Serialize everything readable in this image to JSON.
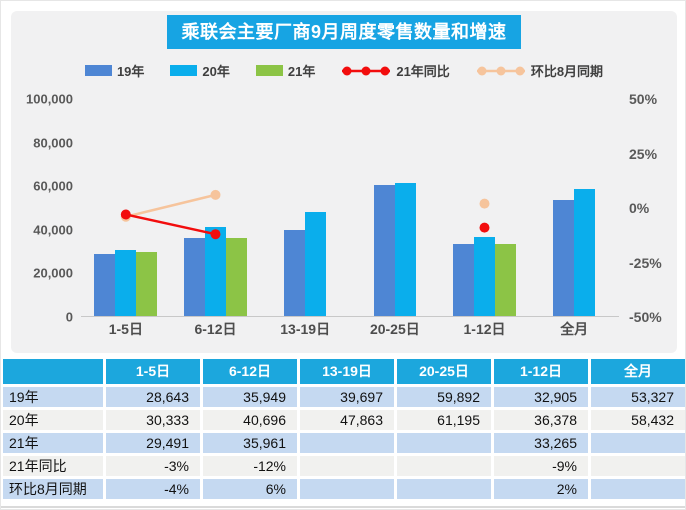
{
  "chart_data": {
    "type": "bar",
    "title": "乘联会主要厂商9月周度零售数量和增速",
    "categories": [
      "1-5日",
      "6-12日",
      "13-19日",
      "20-25日",
      "1-12日",
      "全月"
    ],
    "bar_series": [
      {
        "name": "19年",
        "color": "#4e86d4",
        "values": [
          28643,
          35949,
          39697,
          59892,
          32905,
          53327
        ]
      },
      {
        "name": "20年",
        "color": "#0aaeec",
        "values": [
          30333,
          40696,
          47863,
          61195,
          36378,
          58432
        ]
      },
      {
        "name": "21年",
        "color": "#8cc446",
        "values": [
          29491,
          35961,
          null,
          null,
          33265,
          null
        ]
      }
    ],
    "line_series": [
      {
        "name": "21年同比",
        "color": "#f20d0d",
        "values_pct": [
          -3,
          -12,
          null,
          null,
          -9,
          null
        ]
      },
      {
        "name": "环比8月同期",
        "color": "#f6c49c",
        "values_pct": [
          -4,
          6,
          null,
          null,
          2,
          null
        ]
      }
    ],
    "left_axis": {
      "ticks": [
        "100,000",
        "80,000",
        "60,000",
        "40,000",
        "20,000",
        "0"
      ],
      "min": 0,
      "max": 100000
    },
    "right_axis": {
      "ticks": [
        "50%",
        "25%",
        "0%",
        "-25%",
        "-50%"
      ],
      "min": -50,
      "max": 50
    },
    "grid": false,
    "legend_position": "top-center"
  },
  "table": {
    "header": [
      "",
      "1-5日",
      "6-12日",
      "13-19日",
      "20-25日",
      "1-12日",
      "全月"
    ],
    "rows": [
      {
        "label": "19年",
        "values": [
          "28,643",
          "35,949",
          "39,697",
          "59,892",
          "32,905",
          "53,327"
        ]
      },
      {
        "label": "20年",
        "values": [
          "30,333",
          "40,696",
          "47,863",
          "61,195",
          "36,378",
          "58,432"
        ]
      },
      {
        "label": "21年",
        "values": [
          "29,491",
          "35,961",
          "",
          "",
          "33,265",
          ""
        ]
      },
      {
        "label": "21年同比",
        "values": [
          "-3%",
          "-12%",
          "",
          "",
          "-9%",
          ""
        ]
      },
      {
        "label": "环比8月同期",
        "values": [
          "-4%",
          "6%",
          "",
          "",
          "2%",
          ""
        ]
      }
    ]
  },
  "colors": {
    "title_bg": "#17a4e3",
    "table_header_bg": "#1ca7dd",
    "table_row_blue": "#c5d9f1",
    "table_row_gray": "#f1f1ef",
    "panel_bg": "#f1f1f2",
    "axis_text": "#595959"
  }
}
